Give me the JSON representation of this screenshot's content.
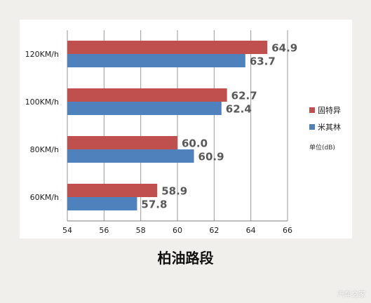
{
  "colors": {
    "series_red": "#c0504d",
    "series_blue": "#4f81bd",
    "grid": "#9a9a9a",
    "label": "#595959"
  },
  "chart_data": {
    "type": "bar",
    "orientation": "horizontal",
    "title": "柏油路段",
    "unit_label": "单位(dB)",
    "categories": [
      "60KM/h",
      "80KM/h",
      "100KM/h",
      "120KM/h"
    ],
    "series": [
      {
        "name": "固特异",
        "color": "#c0504d",
        "values": [
          58.9,
          60.0,
          62.7,
          64.9
        ],
        "labels": [
          "58.9",
          "60.0",
          "62.7",
          "64.9"
        ]
      },
      {
        "name": "米其林",
        "color": "#4f81bd",
        "values": [
          57.8,
          60.9,
          62.4,
          63.7
        ],
        "labels": [
          "57.8",
          "60.9",
          "62.4",
          "63.7"
        ]
      }
    ],
    "xlim": [
      54,
      66
    ],
    "xticks": [
      "54",
      "56",
      "58",
      "60",
      "62",
      "64",
      "66"
    ],
    "grid": true,
    "legend_position": "right"
  },
  "watermark": "汽车之家"
}
